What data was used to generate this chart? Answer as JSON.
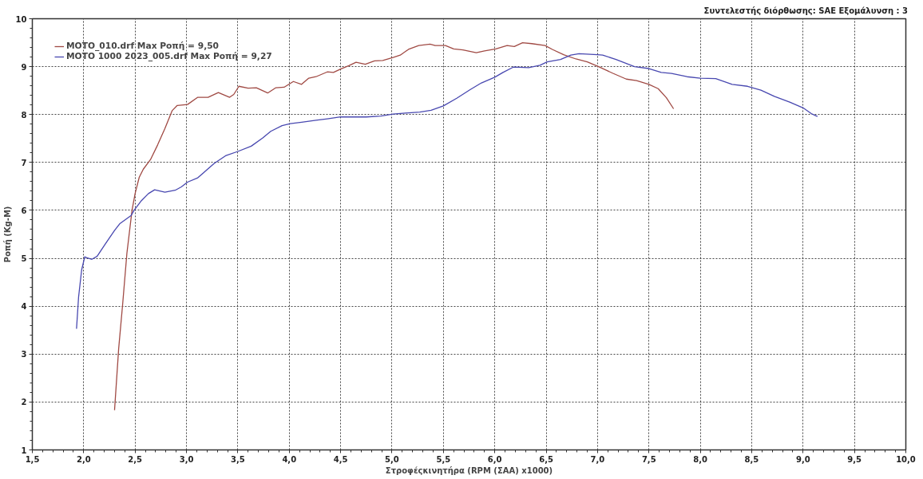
{
  "chart_data": {
    "type": "line",
    "xlabel": "Στροφέςκινητήρα (RPM (ΣΑΑ) x1000)",
    "ylabel": "Ροπή (Kg-M)",
    "annotations": [
      "Συντελεστής διόρθωσης: SAE  Εξομάλυνση : 3"
    ],
    "xlim": [
      1.5,
      10
    ],
    "ylim": [
      1,
      10
    ],
    "xticks": [
      {
        "value": 1.5,
        "label": "1,5"
      },
      {
        "value": 2,
        "label": "2,0"
      },
      {
        "value": 2.5,
        "label": "2,5"
      },
      {
        "value": 3,
        "label": "3,0"
      },
      {
        "value": 3.5,
        "label": "3,5"
      },
      {
        "value": 4,
        "label": "4,0"
      },
      {
        "value": 4.5,
        "label": "4,5"
      },
      {
        "value": 5,
        "label": "5,0"
      },
      {
        "value": 5.5,
        "label": "5,5"
      },
      {
        "value": 6,
        "label": "6,0"
      },
      {
        "value": 6.5,
        "label": "6,5"
      },
      {
        "value": 7,
        "label": "7,0"
      },
      {
        "value": 7.5,
        "label": "7,5"
      },
      {
        "value": 8,
        "label": "8,0"
      },
      {
        "value": 8.5,
        "label": "8,5"
      },
      {
        "value": 9,
        "label": "9,0"
      },
      {
        "value": 9.5,
        "label": "9,5"
      },
      {
        "value": 10,
        "label": "10,0"
      }
    ],
    "yticks": [
      1,
      2,
      3,
      4,
      5,
      6,
      7,
      8,
      9,
      10
    ],
    "grid": true,
    "legend": "top left",
    "line_style": "solid",
    "series": [
      {
        "name": "MOTO_010.drf Max Ροπή = 9,50",
        "color": "#a04a44",
        "x": [
          2.3,
          2.34,
          2.38,
          2.42,
          2.47,
          2.5,
          2.54,
          2.58,
          2.65,
          2.72,
          2.79,
          2.86,
          2.91,
          3.01,
          3.11,
          3.21,
          3.31,
          3.42,
          3.46,
          3.51,
          3.6,
          3.68,
          3.79,
          3.87,
          3.95,
          4.04,
          4.12,
          4.19,
          4.26,
          4.37,
          4.43,
          4.5,
          4.58,
          4.65,
          4.74,
          4.83,
          4.91,
          5.01,
          5.08,
          5.16,
          5.26,
          5.37,
          5.42,
          5.52,
          5.6,
          5.69,
          5.82,
          5.9,
          6.01,
          6.12,
          6.19,
          6.27,
          6.36,
          6.49,
          6.56,
          6.67,
          6.79,
          6.9,
          7.01,
          7.15,
          7.28,
          7.38,
          7.5,
          7.59,
          7.67,
          7.74
        ],
        "values": [
          1.83,
          3.11,
          4.07,
          5.1,
          6.0,
          6.35,
          6.69,
          6.86,
          7.06,
          7.37,
          7.71,
          8.08,
          8.19,
          8.21,
          8.36,
          8.36,
          8.46,
          8.36,
          8.42,
          8.59,
          8.55,
          8.56,
          8.45,
          8.56,
          8.57,
          8.69,
          8.63,
          8.76,
          8.79,
          8.89,
          8.88,
          8.95,
          9.02,
          9.09,
          9.05,
          9.12,
          9.13,
          9.19,
          9.24,
          9.36,
          9.44,
          9.47,
          9.44,
          9.44,
          9.37,
          9.35,
          9.29,
          9.33,
          9.37,
          9.44,
          9.42,
          9.5,
          9.48,
          9.44,
          9.36,
          9.25,
          9.16,
          9.1,
          9.0,
          8.86,
          8.74,
          8.71,
          8.63,
          8.54,
          8.35,
          8.12
        ]
      },
      {
        "name": "MOTO 1000 2023_005.drf Max Ροπή = 9,27",
        "color": "#4848b0",
        "x": [
          1.93,
          1.95,
          1.98,
          2.01,
          2.03,
          2.08,
          2.13,
          2.21,
          2.3,
          2.35,
          2.46,
          2.49,
          2.56,
          2.63,
          2.69,
          2.79,
          2.89,
          2.95,
          3.01,
          3.11,
          3.19,
          3.27,
          3.38,
          3.5,
          3.63,
          3.74,
          3.82,
          3.93,
          4.01,
          4.12,
          4.26,
          4.37,
          4.5,
          4.61,
          4.75,
          4.89,
          5.01,
          5.13,
          5.27,
          5.38,
          5.5,
          5.63,
          5.76,
          5.87,
          6.0,
          6.08,
          6.18,
          6.33,
          6.44,
          6.51,
          6.64,
          6.74,
          6.82,
          7.0,
          7.05,
          7.18,
          7.36,
          7.5,
          7.62,
          7.72,
          7.87,
          8.0,
          8.15,
          8.31,
          8.46,
          8.59,
          8.72,
          8.87,
          9.0,
          9.08,
          9.14
        ],
        "values": [
          3.53,
          4.19,
          4.76,
          5.03,
          5.01,
          4.98,
          5.04,
          5.3,
          5.58,
          5.72,
          5.89,
          6.0,
          6.2,
          6.35,
          6.43,
          6.38,
          6.42,
          6.49,
          6.59,
          6.68,
          6.83,
          6.98,
          7.14,
          7.23,
          7.34,
          7.51,
          7.65,
          7.77,
          7.81,
          7.84,
          7.88,
          7.91,
          7.95,
          7.95,
          7.95,
          7.97,
          8.01,
          8.03,
          8.05,
          8.09,
          8.18,
          8.34,
          8.52,
          8.66,
          8.78,
          8.88,
          8.99,
          8.98,
          9.03,
          9.1,
          9.15,
          9.24,
          9.27,
          9.25,
          9.24,
          9.15,
          9.0,
          8.96,
          8.88,
          8.86,
          8.79,
          8.76,
          8.75,
          8.63,
          8.59,
          8.51,
          8.38,
          8.26,
          8.14,
          8.02,
          7.96
        ]
      }
    ]
  }
}
